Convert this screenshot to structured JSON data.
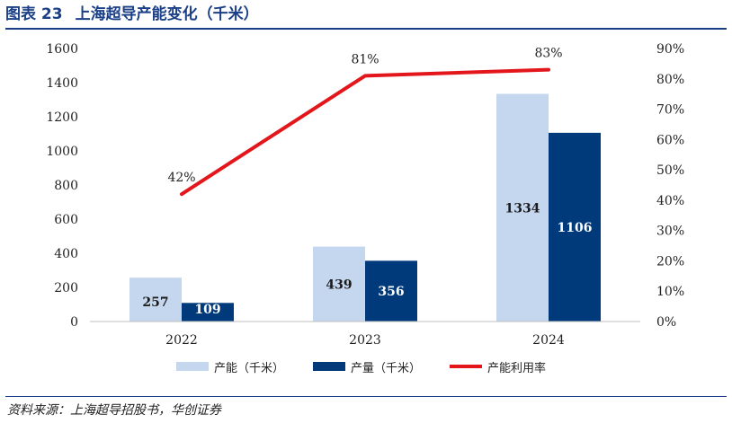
{
  "title": {
    "number": "图表 23",
    "text": "上海超导产能变化（千米）"
  },
  "source": "资料来源：上海超导招股书，华创证券",
  "colors": {
    "capacity": "#c5d7ee",
    "output": "#003a7a",
    "utilization": "#e3161b",
    "title": "#1a3f86"
  },
  "chart_data": {
    "type": "bar",
    "categories": [
      "2022",
      "2023",
      "2024"
    ],
    "series": [
      {
        "name": "产能（千米）",
        "type": "bar",
        "axis": "left",
        "values": [
          257,
          439,
          1334
        ]
      },
      {
        "name": "产量（千米）",
        "type": "bar",
        "axis": "left",
        "values": [
          109,
          356,
          1106
        ]
      },
      {
        "name": "产能利用率",
        "type": "line",
        "axis": "right",
        "values": [
          42,
          81,
          83
        ],
        "labels": [
          "42%",
          "81%",
          "83%"
        ]
      }
    ],
    "left_axis": {
      "min": 0,
      "max": 1600,
      "ticks": [
        "0",
        "200",
        "400",
        "600",
        "800",
        "1000",
        "1200",
        "1400",
        "1600"
      ]
    },
    "right_axis": {
      "min": 0,
      "max": 90,
      "ticks": [
        "0%",
        "10%",
        "20%",
        "30%",
        "40%",
        "50%",
        "60%",
        "70%",
        "80%",
        "90%"
      ]
    },
    "legend_position": "bottom"
  }
}
